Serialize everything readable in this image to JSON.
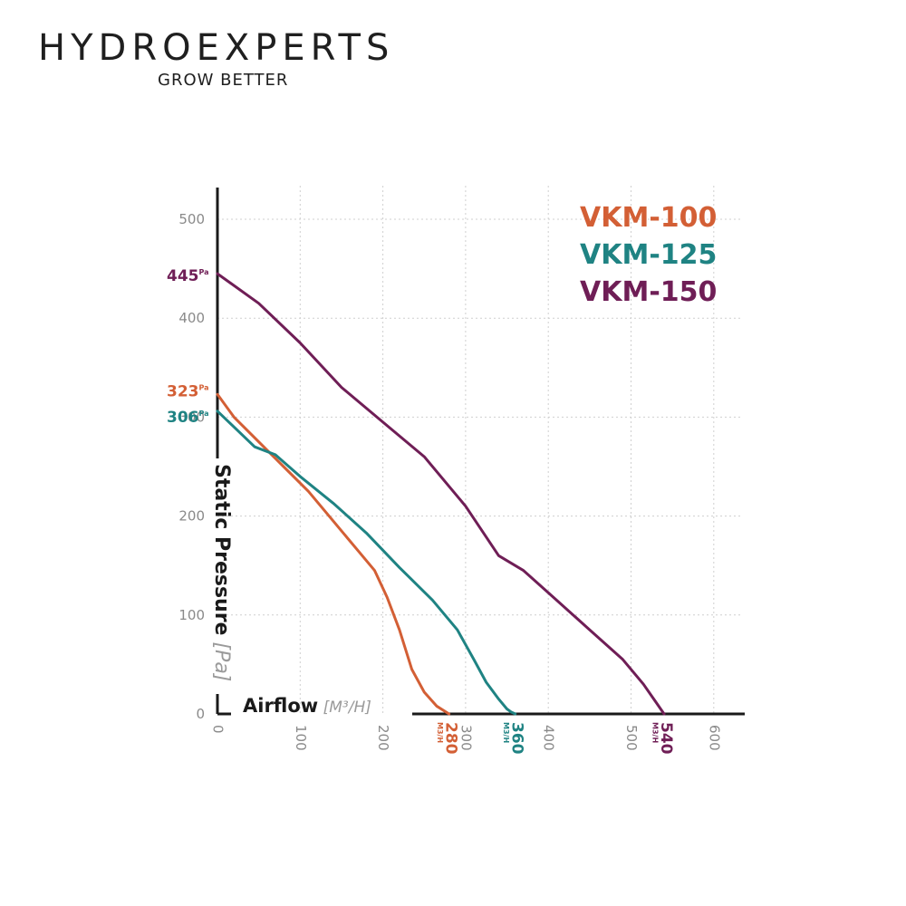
{
  "brand": {
    "name": "HYDROEXPERTS",
    "tagline": "GROW BETTER"
  },
  "colors": {
    "VKM-100": "#d35f35",
    "VKM-125": "#1f8383",
    "VKM-150": "#6f1e56",
    "grid": "#cfcfcf",
    "axis": "#1a1a1a",
    "tick": "#8a8a8a"
  },
  "chart_data": {
    "type": "line",
    "title": "",
    "xlabel": "Airflow",
    "xlabel_unit": "[M³/H]",
    "ylabel": "Static Pressure",
    "ylabel_unit": "[Pa]",
    "xlim": [
      0,
      620
    ],
    "ylim": [
      0,
      540
    ],
    "x_ticks": [
      "0",
      "100",
      "200",
      "300",
      "400",
      "500",
      "600"
    ],
    "y_ticks": [
      "0",
      "100",
      "200",
      "300",
      "400",
      "500"
    ],
    "grid": true,
    "legend_position": "top-right",
    "series": [
      {
        "name": "VKM-100",
        "max_pressure_label": "323",
        "max_pressure_unit": "Pa",
        "max_airflow_label": "280",
        "max_airflow_unit": "M3/H",
        "points": [
          [
            0,
            323
          ],
          [
            20,
            300
          ],
          [
            50,
            275
          ],
          [
            80,
            250
          ],
          [
            110,
            225
          ],
          [
            140,
            195
          ],
          [
            170,
            165
          ],
          [
            190,
            145
          ],
          [
            205,
            118
          ],
          [
            220,
            85
          ],
          [
            235,
            45
          ],
          [
            250,
            22
          ],
          [
            265,
            8
          ],
          [
            280,
            0
          ]
        ]
      },
      {
        "name": "VKM-125",
        "max_pressure_label": "306",
        "max_pressure_unit": "Pa",
        "max_airflow_label": "360",
        "max_airflow_unit": "M3/H",
        "points": [
          [
            0,
            306
          ],
          [
            20,
            290
          ],
          [
            45,
            270
          ],
          [
            70,
            262
          ],
          [
            100,
            240
          ],
          [
            140,
            213
          ],
          [
            180,
            183
          ],
          [
            220,
            148
          ],
          [
            260,
            115
          ],
          [
            290,
            85
          ],
          [
            310,
            55
          ],
          [
            325,
            32
          ],
          [
            340,
            15
          ],
          [
            350,
            5
          ],
          [
            355,
            2
          ],
          [
            360,
            0
          ]
        ]
      },
      {
        "name": "VKM-150",
        "max_pressure_label": "445",
        "max_pressure_unit": "Pa",
        "max_airflow_label": "540",
        "max_airflow_unit": "M3/H",
        "points": [
          [
            0,
            445
          ],
          [
            50,
            415
          ],
          [
            100,
            375
          ],
          [
            150,
            330
          ],
          [
            200,
            295
          ],
          [
            250,
            260
          ],
          [
            300,
            210
          ],
          [
            340,
            160
          ],
          [
            370,
            145
          ],
          [
            410,
            115
          ],
          [
            450,
            85
          ],
          [
            490,
            55
          ],
          [
            515,
            30
          ],
          [
            530,
            12
          ],
          [
            540,
            0
          ]
        ]
      }
    ]
  }
}
